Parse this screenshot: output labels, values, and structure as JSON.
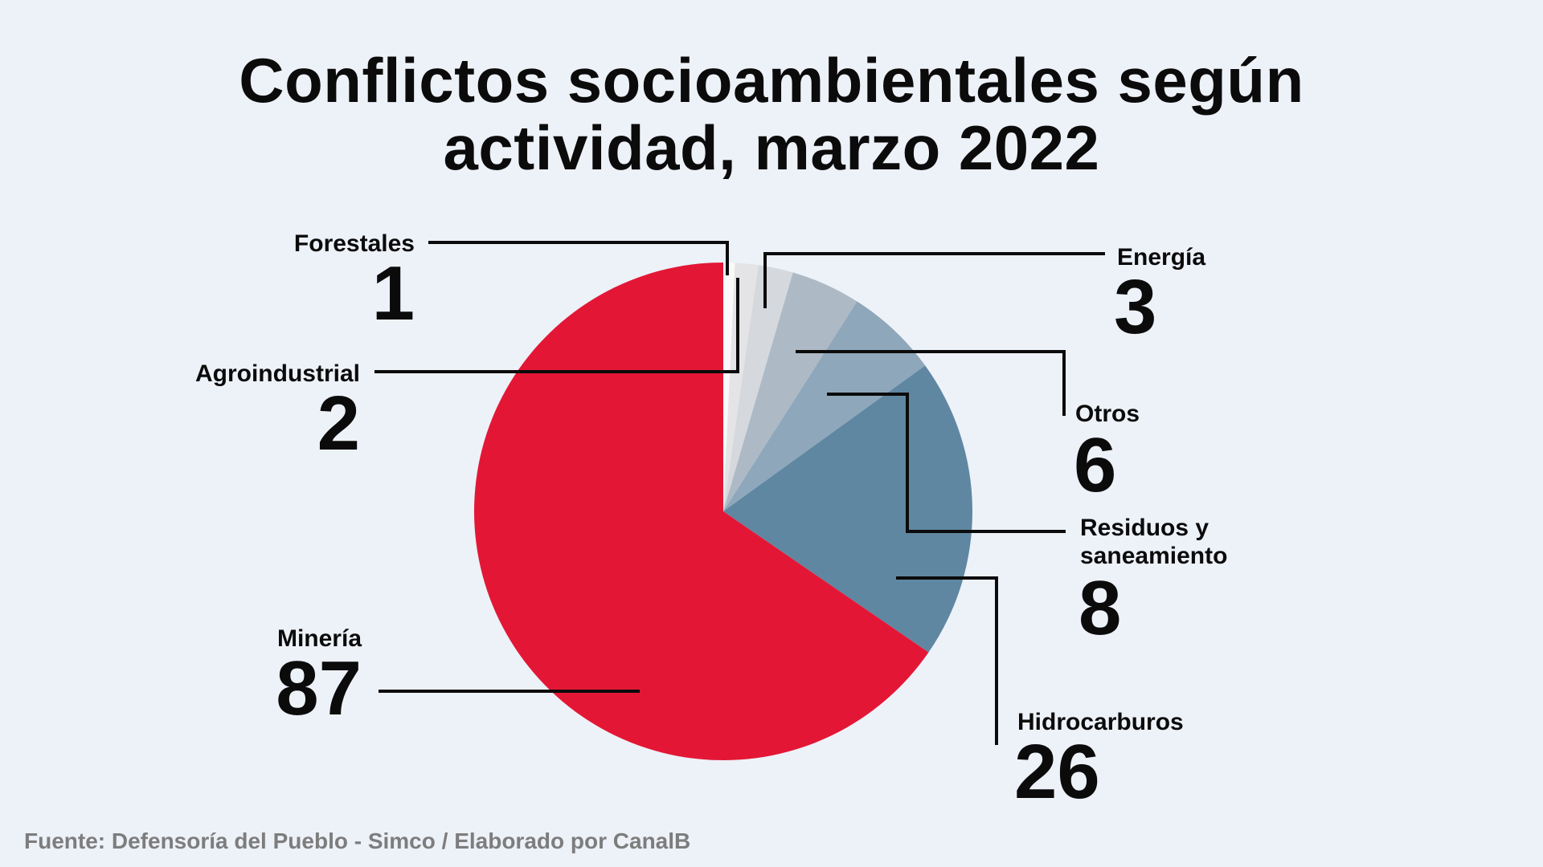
{
  "chart_data": {
    "type": "pie",
    "title_lines": [
      "Conflictos socioambientales según",
      "actividad, marzo 2022"
    ],
    "categories": [
      "Forestales",
      "Agroindustrial",
      "Energía",
      "Otros",
      "Residuos y saneamiento",
      "Hidrocarburos",
      "Minería"
    ],
    "label_lines": [
      [
        "Forestales"
      ],
      [
        "Agroindustrial"
      ],
      [
        "Energía"
      ],
      [
        "Otros"
      ],
      [
        "Residuos y",
        "saneamiento"
      ],
      [
        "Hidrocarburos"
      ],
      [
        "Minería"
      ]
    ],
    "values": [
      1,
      2,
      3,
      6,
      8,
      26,
      87
    ],
    "colors": [
      "#f9f9f9",
      "#e4e4e6",
      "#d5d9de",
      "#adbac6",
      "#8ea7ba",
      "#5f87a2",
      "#e31735"
    ],
    "start_angle_deg": 0,
    "direction": "clockwise",
    "legend": "none"
  },
  "source": "Fuente: Defensoría del Pueblo - Simco / Elaborado por CanalB"
}
